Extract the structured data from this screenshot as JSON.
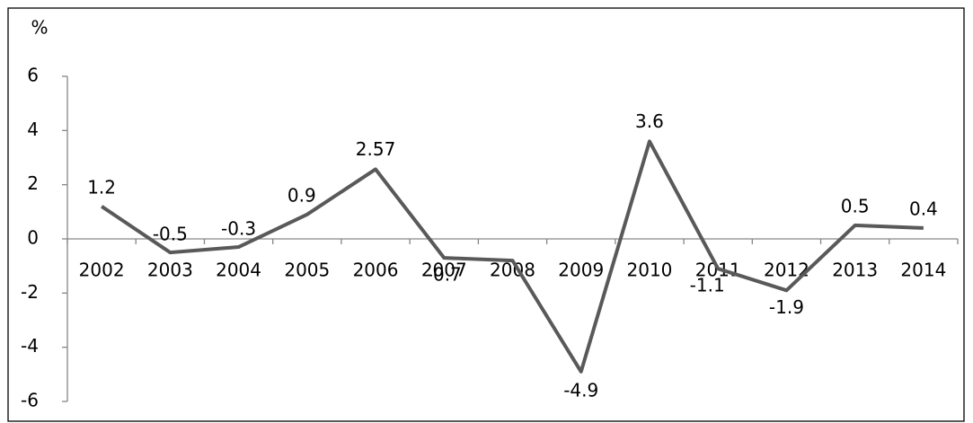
{
  "chart_data": {
    "type": "line",
    "y_label": "%",
    "categories": [
      "2002",
      "2003",
      "2004",
      "2005",
      "2006",
      "2007",
      "2008",
      "2009",
      "2010",
      "2011",
      "2012",
      "2013",
      "2014"
    ],
    "values": [
      1.2,
      -0.5,
      -0.3,
      0.9,
      2.57,
      -0.7,
      -0.8,
      -4.9,
      3.6,
      -1.1,
      -1.9,
      0.5,
      0.4
    ],
    "value_labels": [
      "1.2",
      "-0.5",
      "-0.3",
      "0.9",
      "2.57",
      "-0.7",
      null,
      "-4.9",
      "3.6",
      "-1.1",
      "-1.9",
      "0.5",
      "0.4"
    ],
    "color": "#595959",
    "ylim": [
      -6,
      6
    ],
    "yticks": [
      -6,
      -4,
      -2,
      0,
      2,
      4,
      6
    ],
    "grid": false
  }
}
